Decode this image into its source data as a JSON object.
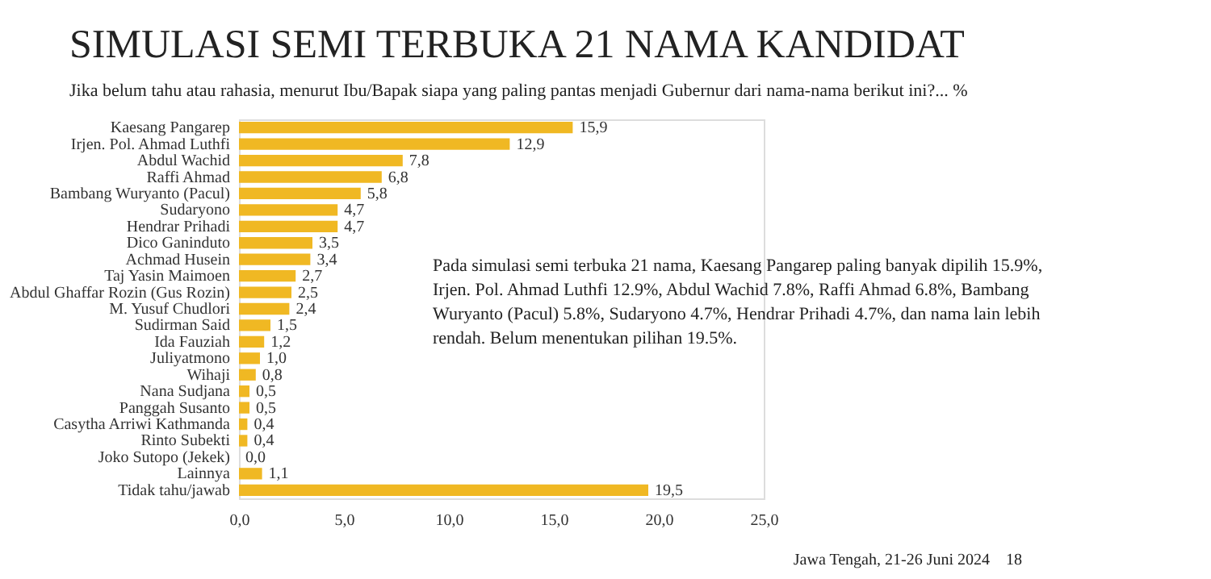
{
  "chart_data": {
    "type": "bar",
    "orientation": "horizontal",
    "title": "SIMULASI SEMI TERBUKA 21 NAMA KANDIDAT",
    "subtitle": "Jika belum tahu atau rahasia, menurut Ibu/Bapak siapa yang paling pantas menjadi Gubernur dari nama-nama berikut ini?... %",
    "categories": [
      "Kaesang Pangarep",
      "Irjen. Pol. Ahmad Luthfi",
      "Abdul Wachid",
      "Raffi Ahmad",
      "Bambang Wuryanto (Pacul)",
      "Sudaryono",
      "Hendrar Prihadi",
      "Dico Ganinduto",
      "Achmad Husein",
      "Taj Yasin Maimoen",
      "Abdul Ghaffar Rozin (Gus Rozin)",
      "M. Yusuf Chudlori",
      "Sudirman Said",
      "Ida Fauziah",
      "Juliyatmono",
      "Wihaji",
      "Nana Sudjana",
      "Panggah Susanto",
      "Casytha Arriwi Kathmanda",
      "Rinto Subekti",
      "Joko Sutopo (Jekek)",
      "Lainnya",
      "Tidak tahu/jawab"
    ],
    "values": [
      15.9,
      12.9,
      7.8,
      6.8,
      5.8,
      4.7,
      4.7,
      3.5,
      3.4,
      2.7,
      2.5,
      2.4,
      1.5,
      1.2,
      1.0,
      0.8,
      0.5,
      0.5,
      0.4,
      0.4,
      0.0,
      1.1,
      19.5
    ],
    "value_labels": [
      "15,9",
      "12,9",
      "7,8",
      "6,8",
      "5,8",
      "4,7",
      "4,7",
      "3,5",
      "3,4",
      "2,7",
      "2,5",
      "2,4",
      "1,5",
      "1,2",
      "1,0",
      "0,8",
      "0,5",
      "0,5",
      "0,4",
      "0,4",
      "0,0",
      "1,1",
      "19,5"
    ],
    "color": "#f0b823",
    "xlim": [
      0,
      25
    ],
    "xticks": [
      {
        "value": 0,
        "label": "0,0"
      },
      {
        "value": 5,
        "label": "5,0"
      },
      {
        "value": 10,
        "label": "10,0"
      },
      {
        "value": 15,
        "label": "15,0"
      },
      {
        "value": 20,
        "label": "20,0"
      },
      {
        "value": 25,
        "label": "25,0"
      }
    ],
    "grid": false,
    "annotations": [
      "Pada simulasi semi terbuka 21 nama, Kaesang Pangarep paling banyak dipilih 15.9%, Irjen. Pol. Ahmad Luthfi 12.9%, Abdul Wachid 7.8%, Raffi Ahmad 6.8%, Bambang Wuryanto (Pacul) 5.8%, Sudaryono 4.7%, Hendrar Prihadi 4.7%, dan nama lain lebih rendah. Belum menentukan pilihan 19.5%.",
      "Jawa Tengah, 21-26 Juni 2024",
      "18"
    ]
  }
}
